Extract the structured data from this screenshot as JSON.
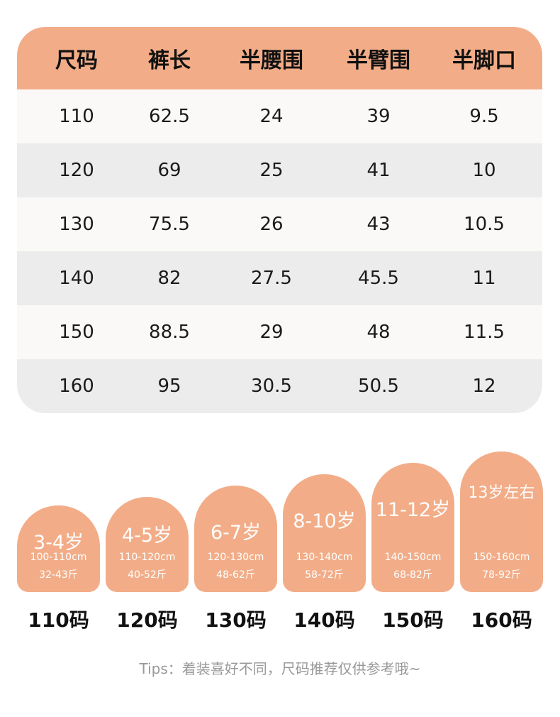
{
  "table": {
    "headers": [
      "尺码",
      "裤长",
      "半腰围",
      "半臂围",
      "半脚口"
    ],
    "rows": [
      [
        "110",
        "62.5",
        "24",
        "39",
        "9.5"
      ],
      [
        "120",
        "69",
        "25",
        "41",
        "10"
      ],
      [
        "130",
        "75.5",
        "26",
        "43",
        "10.5"
      ],
      [
        "140",
        "82",
        "27.5",
        "45.5",
        "11"
      ],
      [
        "150",
        "88.5",
        "29",
        "48",
        "11.5"
      ],
      [
        "160",
        "95",
        "30.5",
        "50.5",
        "12"
      ]
    ]
  },
  "cards": [
    {
      "age": "3-4岁",
      "height": "100-110cm",
      "weight": "32-43斤",
      "size": "110码"
    },
    {
      "age": "4-5岁",
      "height": "110-120cm",
      "weight": "40-52斤",
      "size": "120码"
    },
    {
      "age": "6-7岁",
      "height": "120-130cm",
      "weight": "48-62斤",
      "size": "130码"
    },
    {
      "age": "8-10岁",
      "height": "130-140cm",
      "weight": "58-72斤",
      "size": "140码"
    },
    {
      "age": "11-12岁",
      "height": "140-150cm",
      "weight": "68-82斤",
      "size": "150码"
    },
    {
      "age": "13岁左右",
      "height": "150-160cm",
      "weight": "78-92斤",
      "size": "160码"
    }
  ],
  "tips": "Tips：着装喜好不同，尺码推荐仅供参考哦~"
}
